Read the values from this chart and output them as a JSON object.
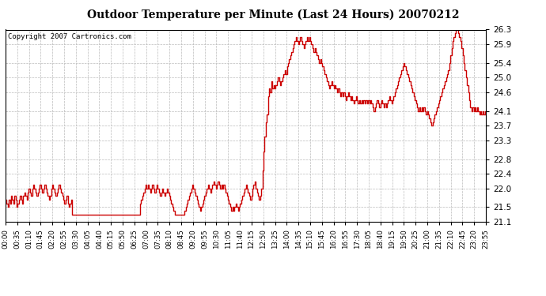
{
  "title": "Outdoor Temperature per Minute (Last 24 Hours) 20070212",
  "copyright": "Copyright 2007 Cartronics.com",
  "line_color": "#cc0000",
  "bg_color": "#ffffff",
  "grid_color": "#bbbbbb",
  "yticks": [
    21.1,
    21.5,
    22.0,
    22.4,
    22.8,
    23.3,
    23.7,
    24.1,
    24.6,
    25.0,
    25.4,
    25.9,
    26.3
  ],
  "ylim": [
    21.1,
    26.3
  ],
  "xtick_labels": [
    "00:00",
    "00:35",
    "01:10",
    "01:45",
    "02:20",
    "02:55",
    "03:30",
    "04:05",
    "04:40",
    "05:15",
    "05:50",
    "06:25",
    "07:00",
    "07:35",
    "08:10",
    "08:45",
    "09:20",
    "09:55",
    "10:30",
    "11:05",
    "11:40",
    "12:15",
    "12:50",
    "13:25",
    "14:00",
    "14:35",
    "15:10",
    "15:45",
    "16:20",
    "16:55",
    "17:30",
    "18:05",
    "18:40",
    "19:15",
    "19:50",
    "20:25",
    "21:00",
    "21:35",
    "22:10",
    "22:45",
    "23:20",
    "23:55"
  ],
  "temperature_data": [
    21.7,
    21.6,
    21.5,
    21.7,
    21.6,
    21.8,
    21.7,
    21.6,
    21.8,
    21.7,
    21.5,
    21.6,
    21.7,
    21.8,
    21.7,
    21.6,
    21.8,
    21.9,
    21.8,
    21.7,
    21.9,
    22.0,
    21.9,
    21.8,
    22.0,
    22.1,
    22.0,
    21.9,
    21.8,
    21.9,
    22.0,
    22.1,
    22.0,
    21.9,
    22.0,
    22.1,
    22.0,
    21.9,
    21.8,
    21.7,
    21.8,
    22.0,
    22.1,
    22.0,
    21.9,
    21.8,
    21.9,
    22.0,
    22.1,
    22.0,
    21.9,
    21.8,
    21.7,
    21.6,
    21.7,
    21.8,
    21.6,
    21.5,
    21.6,
    21.7,
    21.3,
    21.3,
    21.3,
    21.3,
    21.3,
    21.3,
    21.3,
    21.3,
    21.3,
    21.3,
    21.3,
    21.3,
    21.3,
    21.3,
    21.3,
    21.3,
    21.3,
    21.3,
    21.3,
    21.3,
    21.3,
    21.3,
    21.3,
    21.3,
    21.3,
    21.3,
    21.3,
    21.3,
    21.3,
    21.3,
    21.3,
    21.3,
    21.3,
    21.3,
    21.3,
    21.3,
    21.3,
    21.3,
    21.3,
    21.3,
    21.3,
    21.3,
    21.3,
    21.3,
    21.3,
    21.3,
    21.3,
    21.3,
    21.3,
    21.3,
    21.3,
    21.3,
    21.3,
    21.3,
    21.3,
    21.3,
    21.3,
    21.3,
    21.3,
    21.3,
    21.3,
    21.6,
    21.7,
    21.8,
    21.9,
    22.0,
    22.1,
    22.0,
    22.1,
    22.0,
    21.9,
    22.0,
    22.1,
    22.0,
    21.9,
    22.0,
    22.1,
    22.0,
    21.9,
    21.8,
    21.9,
    22.0,
    21.9,
    21.8,
    21.9,
    22.0,
    21.9,
    21.8,
    21.7,
    21.6,
    21.5,
    21.4,
    21.3,
    21.3,
    21.3,
    21.3,
    21.3,
    21.3,
    21.3,
    21.3,
    21.3,
    21.4,
    21.5,
    21.6,
    21.7,
    21.8,
    21.9,
    22.0,
    22.1,
    22.0,
    21.9,
    21.8,
    21.7,
    21.6,
    21.5,
    21.4,
    21.5,
    21.6,
    21.7,
    21.8,
    21.9,
    22.0,
    22.1,
    22.0,
    21.9,
    22.0,
    22.1,
    22.2,
    22.1,
    22.0,
    22.1,
    22.2,
    22.1,
    22.0,
    22.1,
    22.0,
    22.1,
    22.0,
    21.9,
    21.8,
    21.7,
    21.6,
    21.5,
    21.4,
    21.5,
    21.4,
    21.5,
    21.6,
    21.5,
    21.4,
    21.5,
    21.6,
    21.7,
    21.8,
    21.9,
    22.0,
    22.1,
    22.0,
    21.9,
    21.8,
    21.7,
    21.8,
    22.0,
    22.1,
    22.2,
    22.0,
    21.9,
    21.8,
    21.7,
    21.8,
    22.0,
    22.5,
    23.0,
    23.4,
    23.8,
    24.0,
    24.5,
    24.7,
    24.6,
    24.9,
    24.7,
    24.8,
    24.7,
    24.8,
    24.9,
    25.0,
    24.9,
    24.8,
    24.9,
    25.0,
    25.1,
    25.2,
    25.1,
    25.3,
    25.4,
    25.5,
    25.6,
    25.7,
    25.8,
    25.9,
    26.0,
    26.1,
    26.0,
    25.9,
    26.0,
    26.1,
    26.0,
    25.9,
    25.8,
    25.9,
    26.0,
    26.1,
    26.0,
    26.1,
    26.0,
    25.9,
    25.8,
    25.7,
    25.8,
    25.7,
    25.6,
    25.5,
    25.4,
    25.5,
    25.4,
    25.3,
    25.2,
    25.1,
    25.0,
    24.9,
    24.8,
    24.7,
    24.8,
    24.9,
    24.8,
    24.7,
    24.8,
    24.7,
    24.6,
    24.7,
    24.6,
    24.5,
    24.6,
    24.5,
    24.6,
    24.5,
    24.4,
    24.5,
    24.6,
    24.5,
    24.4,
    24.5,
    24.4,
    24.3,
    24.4,
    24.5,
    24.4,
    24.3,
    24.4,
    24.3,
    24.4,
    24.3,
    24.4,
    24.3,
    24.4,
    24.3,
    24.4,
    24.3,
    24.4,
    24.3,
    24.2,
    24.1,
    24.2,
    24.3,
    24.4,
    24.3,
    24.2,
    24.3,
    24.4,
    24.3,
    24.2,
    24.3,
    24.2,
    24.3,
    24.4,
    24.5,
    24.4,
    24.3,
    24.4,
    24.5,
    24.6,
    24.7,
    24.8,
    24.9,
    25.0,
    25.1,
    25.2,
    25.3,
    25.4,
    25.3,
    25.2,
    25.1,
    25.0,
    24.9,
    24.8,
    24.7,
    24.6,
    24.5,
    24.4,
    24.3,
    24.2,
    24.1,
    24.2,
    24.1,
    24.2,
    24.1,
    24.2,
    24.1,
    24.0,
    24.1,
    24.0,
    23.9,
    23.8,
    23.7,
    23.8,
    23.9,
    24.0,
    24.1,
    24.2,
    24.3,
    24.4,
    24.5,
    24.6,
    24.7,
    24.8,
    24.9,
    25.0,
    25.1,
    25.2,
    25.4,
    25.6,
    25.8,
    26.0,
    26.1,
    26.2,
    26.3,
    26.3,
    26.2,
    26.1,
    26.0,
    25.8,
    25.6,
    25.4,
    25.2,
    25.0,
    24.8,
    24.6,
    24.4,
    24.2,
    24.1,
    24.2,
    24.1,
    24.2,
    24.1,
    24.2,
    24.1,
    24.0,
    24.1,
    24.0,
    24.1,
    24.0,
    24.1,
    24.0
  ]
}
